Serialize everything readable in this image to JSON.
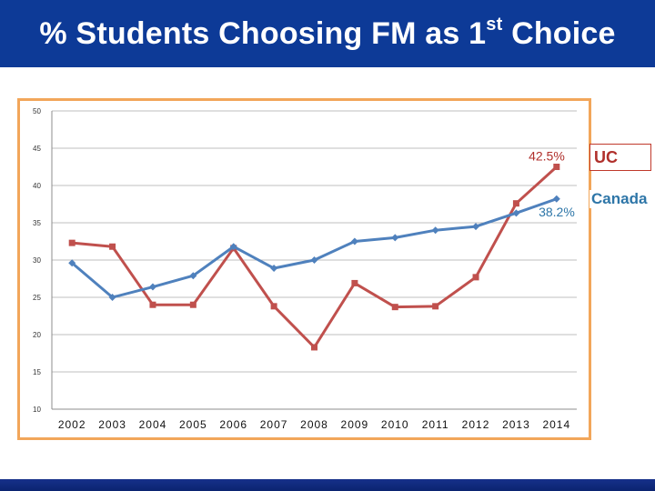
{
  "slide": {
    "title_main": "% Students Choosing FM as 1",
    "title_sup": "st",
    "title_end": " Choice",
    "colors": {
      "title_bar": "#0d3a97",
      "frame": "#f2a65a",
      "uc": "#c0504d",
      "canada": "#4f81bd"
    }
  },
  "chart_data": {
    "type": "line",
    "title": "",
    "xlabel": "",
    "ylabel": "",
    "ylim": [
      10,
      50
    ],
    "yticks": [
      10,
      15,
      20,
      25,
      30,
      35,
      40,
      45,
      50
    ],
    "grid": true,
    "categories": [
      "2002",
      "2003",
      "2004",
      "2005",
      "2006",
      "2007",
      "2008",
      "2009",
      "2010",
      "2011",
      "2012",
      "2013",
      "2014"
    ],
    "series": [
      {
        "name": "UC",
        "color": "#c0504d",
        "marker": "square",
        "values": [
          32.3,
          31.8,
          24.0,
          24.0,
          31.6,
          23.8,
          18.3,
          26.9,
          23.7,
          23.8,
          27.7,
          37.6,
          42.5
        ],
        "end_label": "42.5%"
      },
      {
        "name": "Canada",
        "color": "#4f81bd",
        "marker": "diamond",
        "values": [
          29.6,
          25.0,
          26.4,
          27.9,
          31.8,
          28.9,
          30.0,
          32.5,
          33.0,
          34.0,
          34.5,
          36.3,
          38.2
        ],
        "end_label": "38.2%"
      }
    ],
    "legend": {
      "placement": "right"
    }
  }
}
